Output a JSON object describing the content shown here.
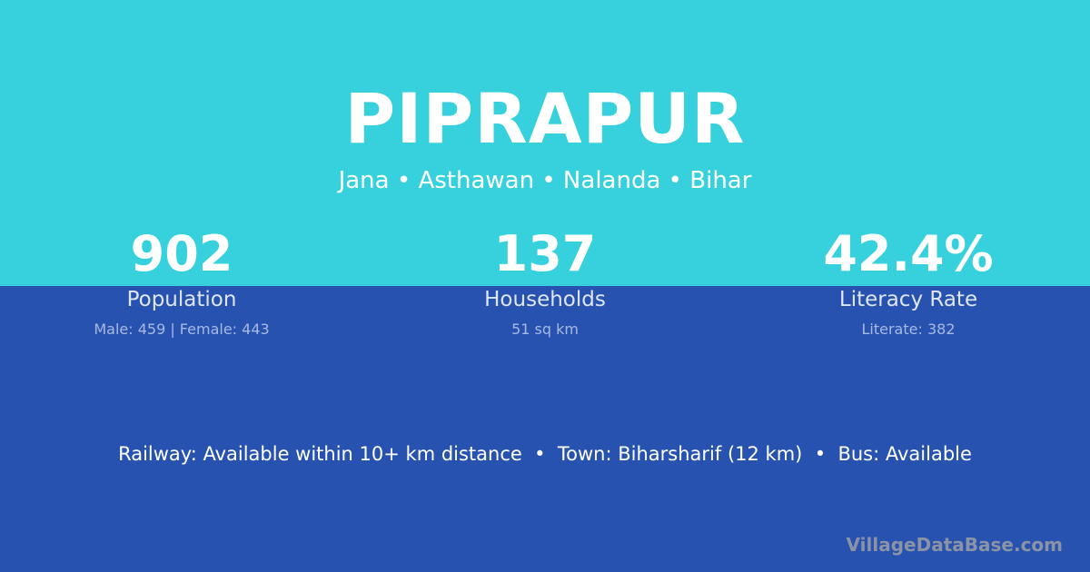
{
  "header": {
    "title": "PIPRAPUR",
    "subtitle": "Jana • Asthawan • Nalanda • Bihar"
  },
  "stats": [
    {
      "value": "902",
      "label": "Population",
      "detail": "Male: 459 | Female: 443"
    },
    {
      "value": "137",
      "label": "Households",
      "detail": "51 sq km"
    },
    {
      "value": "42.4%",
      "label": "Literacy Rate",
      "detail": "Literate: 382"
    }
  ],
  "connectivity": "Railway: Available within 10+ km distance  •  Town: Biharsharif (12 km)  •  Bus: Available",
  "brand": "VillageDataBase.com",
  "colors": {
    "top": "#36d1dc",
    "bottom": "#2752b0"
  }
}
